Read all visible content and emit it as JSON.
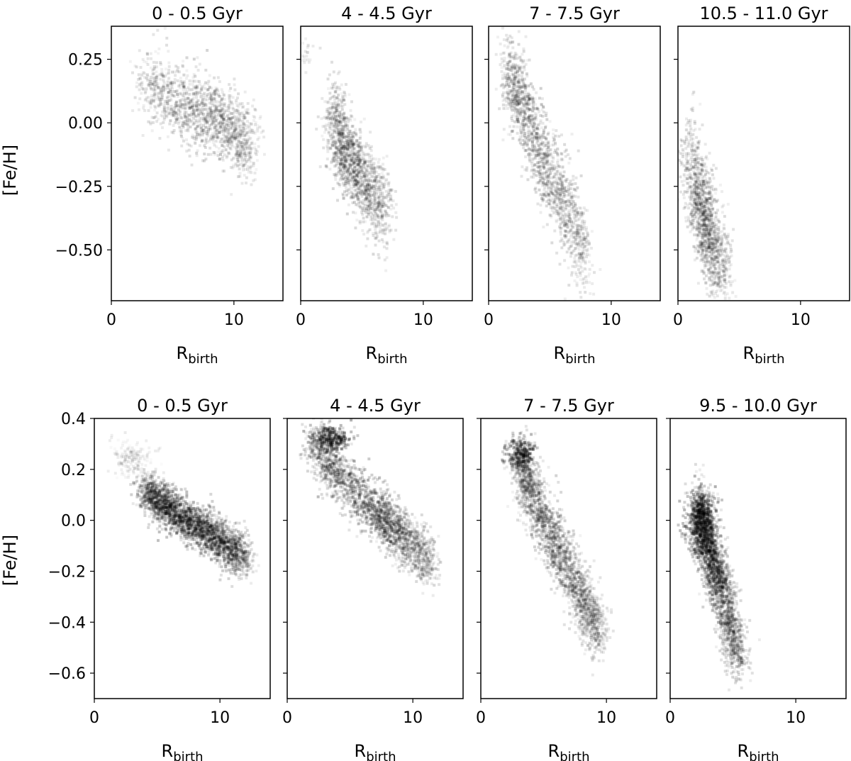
{
  "figure": {
    "rows": [
      {
        "ylabel": "[Fe/H]",
        "ylim": [
          -0.7,
          0.38
        ],
        "yticks": [
          0.25,
          0.0,
          -0.25,
          -0.5
        ],
        "ytick_labels": [
          "0.25",
          "0.00",
          "−0.25",
          "−0.50"
        ],
        "xlim": [
          0,
          14
        ],
        "xticks": [
          0,
          10
        ],
        "xtick_labels": [
          "0",
          "10"
        ]
      },
      {
        "ylabel": "[Fe/H]",
        "ylim": [
          -0.7,
          0.4
        ],
        "yticks": [
          0.4,
          0.2,
          0.0,
          -0.2,
          -0.4,
          -0.6
        ],
        "ytick_labels": [
          "0.4",
          "0.2",
          "0.0",
          "−0.2",
          "−0.4",
          "−0.6"
        ],
        "xlim": [
          0,
          14
        ],
        "xticks": [
          0,
          10
        ],
        "xtick_labels": [
          "0",
          "10"
        ]
      }
    ],
    "xlabel_main": "R",
    "xlabel_sub": "birth"
  },
  "chart_data": [
    {
      "type": "heatmap",
      "title": "0 - 0.5 Gyr",
      "row": 0,
      "col": 0,
      "xlabel": "R_birth",
      "ylabel": "[Fe/H]",
      "xlim": [
        0,
        14
      ],
      "ylim": [
        -0.7,
        0.38
      ],
      "density_path": [
        [
          2.5,
          0.16
        ],
        [
          6,
          0.07
        ],
        [
          9,
          0.0
        ],
        [
          11.5,
          -0.1
        ]
      ],
      "spread_feh": 0.07,
      "intensity": 0.55,
      "points": 1500,
      "extra": []
    },
    {
      "type": "heatmap",
      "title": "4 - 4.5 Gyr",
      "row": 0,
      "col": 1,
      "xlabel": "R_birth",
      "ylabel": "[Fe/H]",
      "xlim": [
        0,
        14
      ],
      "ylim": [
        -0.7,
        0.38
      ],
      "density_path": [
        [
          2.5,
          0.05
        ],
        [
          3.5,
          -0.1
        ],
        [
          5,
          -0.22
        ],
        [
          7,
          -0.35
        ]
      ],
      "spread_feh": 0.08,
      "intensity": 0.6,
      "points": 1500,
      "extra": [
        {
          "x": 0.5,
          "y": 0.27,
          "sx": 0.2,
          "sy": 0.03,
          "n": 20,
          "i": 0.25
        }
      ]
    },
    {
      "type": "heatmap",
      "title": "7 - 7.5 Gyr",
      "row": 0,
      "col": 2,
      "xlabel": "R_birth",
      "ylabel": "[Fe/H]",
      "xlim": [
        0,
        14
      ],
      "ylim": [
        -0.7,
        0.38
      ],
      "density_path": [
        [
          1.5,
          0.23
        ],
        [
          2.5,
          0.1
        ],
        [
          4,
          -0.1
        ],
        [
          6,
          -0.3
        ],
        [
          8,
          -0.55
        ]
      ],
      "spread_feh": 0.08,
      "intensity": 0.6,
      "points": 1600,
      "extra": []
    },
    {
      "type": "heatmap",
      "title": "10.5 - 11.0 Gyr",
      "row": 0,
      "col": 3,
      "xlabel": "R_birth",
      "ylabel": "[Fe/H]",
      "xlim": [
        0,
        14
      ],
      "ylim": [
        -0.7,
        0.38
      ],
      "density_path": [
        [
          0.8,
          -0.1
        ],
        [
          1.8,
          -0.3
        ],
        [
          2.5,
          -0.45
        ],
        [
          4,
          -0.6
        ]
      ],
      "spread_feh": 0.09,
      "intensity": 0.6,
      "points": 1300,
      "extra": []
    },
    {
      "type": "heatmap",
      "title": "0 - 0.5 Gyr",
      "row": 1,
      "col": 0,
      "xlabel": "R_birth",
      "ylabel": "[Fe/H]",
      "xlim": [
        0,
        14
      ],
      "ylim": [
        -0.7,
        0.4
      ],
      "density_path": [
        [
          4,
          0.12
        ],
        [
          6,
          0.04
        ],
        [
          9,
          -0.05
        ],
        [
          12,
          -0.15
        ]
      ],
      "spread_feh": 0.04,
      "intensity": 0.85,
      "points": 2600,
      "extra": [
        {
          "x": 3,
          "y": 0.24,
          "sx": 0.8,
          "sy": 0.04,
          "n": 180,
          "i": 0.2
        }
      ]
    },
    {
      "type": "heatmap",
      "title": "4 - 4.5 Gyr",
      "row": 1,
      "col": 1,
      "xlabel": "R_birth",
      "ylabel": "[Fe/H]",
      "xlim": [
        0,
        14
      ],
      "ylim": [
        -0.7,
        0.4
      ],
      "density_path": [
        [
          2,
          0.3
        ],
        [
          4,
          0.18
        ],
        [
          7,
          0.03
        ],
        [
          9,
          -0.05
        ],
        [
          11.5,
          -0.18
        ]
      ],
      "spread_feh": 0.05,
      "intensity": 0.7,
      "points": 2200,
      "extra": [
        {
          "x": 3.4,
          "y": 0.32,
          "sx": 0.8,
          "sy": 0.025,
          "n": 300,
          "i": 0.85
        }
      ]
    },
    {
      "type": "heatmap",
      "title": "7 - 7.5 Gyr",
      "row": 1,
      "col": 2,
      "xlabel": "R_birth",
      "ylabel": "[Fe/H]",
      "xlim": [
        0,
        14
      ],
      "ylim": [
        -0.7,
        0.4
      ],
      "density_path": [
        [
          3,
          0.26
        ],
        [
          4,
          0.1
        ],
        [
          6,
          -0.1
        ],
        [
          8,
          -0.3
        ],
        [
          9.5,
          -0.45
        ]
      ],
      "spread_feh": 0.06,
      "intensity": 0.6,
      "points": 2400,
      "extra": [
        {
          "x": 3.2,
          "y": 0.26,
          "sx": 0.6,
          "sy": 0.03,
          "n": 250,
          "i": 0.85
        }
      ]
    },
    {
      "type": "heatmap",
      "title": "9.5 - 10.0 Gyr",
      "row": 1,
      "col": 3,
      "xlabel": "R_birth",
      "ylabel": "[Fe/H]",
      "xlim": [
        0,
        14
      ],
      "ylim": [
        -0.7,
        0.4
      ],
      "density_path": [
        [
          2.3,
          0.05
        ],
        [
          2.8,
          -0.08
        ],
        [
          4,
          -0.25
        ],
        [
          5.5,
          -0.55
        ]
      ],
      "spread_feh": 0.06,
      "intensity": 0.75,
      "points": 2400,
      "extra": [
        {
          "x": 2.4,
          "y": 0.0,
          "sx": 0.6,
          "sy": 0.06,
          "n": 500,
          "i": 0.8
        }
      ]
    }
  ]
}
